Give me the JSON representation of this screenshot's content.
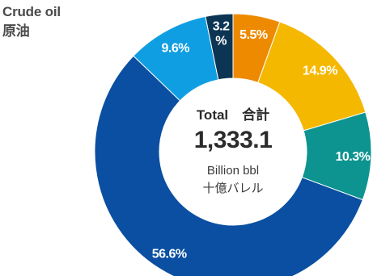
{
  "chart_data": {
    "type": "pie",
    "title": "Crude oil",
    "subtitle": "原油",
    "center": {
      "total_label": "Total　合計",
      "value": "1,333.1",
      "unit_en": "Billion bbl",
      "unit_ja": "十億バレル"
    },
    "slices": [
      {
        "label_lines": [
          "5.5%"
        ],
        "value": 5.5,
        "color": "#ee8a00"
      },
      {
        "label_lines": [
          "14.9%"
        ],
        "value": 14.9,
        "color": "#f5b800"
      },
      {
        "label_lines": [
          "10.3%"
        ],
        "value": 10.3,
        "color": "#0d9490"
      },
      {
        "label_lines": [
          "56.6%"
        ],
        "value": 56.6,
        "color": "#0a4fa1"
      },
      {
        "label_lines": [
          "9.6%"
        ],
        "value": 9.6,
        "color": "#109ee2"
      },
      {
        "label_lines": [
          "3.2",
          "%"
        ],
        "value": 3.2,
        "color": "#0c3554"
      }
    ]
  }
}
